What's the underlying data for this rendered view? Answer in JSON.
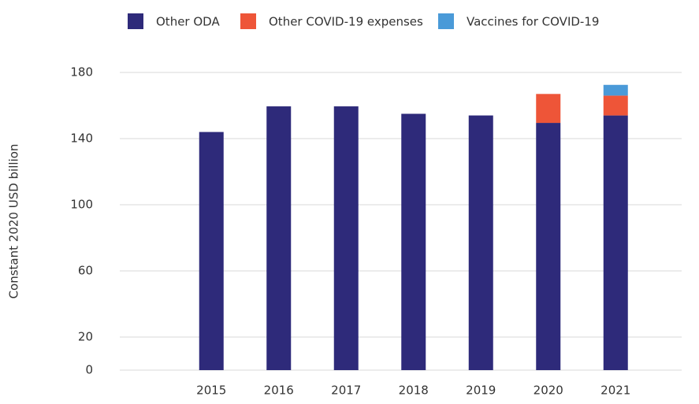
{
  "chart_data": {
    "type": "stacked_bar",
    "ylabel": "Constant 2020 USD billion",
    "categories": [
      "2015",
      "2016",
      "2017",
      "2018",
      "2019",
      "2020",
      "2021"
    ],
    "series": [
      {
        "name": "Other ODA",
        "color": "#2e2a7a",
        "values": [
          144,
          159.5,
          159.5,
          155,
          154,
          149.5,
          154
        ]
      },
      {
        "name": "Other COVID-19 expenses",
        "color": "#ee5538",
        "values": [
          null,
          null,
          null,
          null,
          null,
          17.5,
          12
        ]
      },
      {
        "name": "Vaccines for COVID-19",
        "color": "#4a9ad8",
        "values": [
          null,
          null,
          null,
          null,
          null,
          null,
          6.5
        ]
      }
    ],
    "ylim": [
      0,
      180
    ],
    "yticks": [
      0,
      20,
      60,
      100,
      140,
      180
    ],
    "grid": true,
    "legend": "top"
  }
}
